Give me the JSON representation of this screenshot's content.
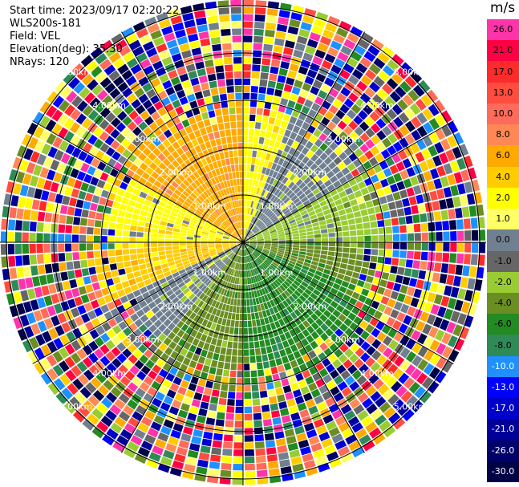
{
  "info": {
    "start_time": "Start time: 2023/09/17 02:20:22",
    "station": "WLS200s-181",
    "field": "Field: VEL",
    "elevation": "Elevation(deg): 35.30",
    "nrays": "NRays: 120"
  },
  "colorbar": {
    "unit": "m/s",
    "levels": [
      {
        "label": "26.0",
        "color": "#ff33aa"
      },
      {
        "label": "21.0",
        "color": "#ff0044"
      },
      {
        "label": "17.0",
        "color": "#ff2a2a"
      },
      {
        "label": "13.0",
        "color": "#ff4d40"
      },
      {
        "label": "10.0",
        "color": "#ff6b5a"
      },
      {
        "label": "8.0",
        "color": "#ff8855"
      },
      {
        "label": "6.0",
        "color": "#ffaa00"
      },
      {
        "label": "4.0",
        "color": "#ffcc00"
      },
      {
        "label": "2.0",
        "color": "#ffff00"
      },
      {
        "label": "1.0",
        "color": "#ffff66"
      },
      {
        "label": "0.0",
        "color": "#708090"
      },
      {
        "label": "-1.0",
        "color": "#666666"
      },
      {
        "label": "-2.0",
        "color": "#99cc33"
      },
      {
        "label": "-4.0",
        "color": "#6b8e23"
      },
      {
        "label": "-6.0",
        "color": "#228b22"
      },
      {
        "label": "-8.0",
        "color": "#2e8b57"
      },
      {
        "label": "-10.0",
        "color": "#1e90ff"
      },
      {
        "label": "-13.0",
        "color": "#0000ff"
      },
      {
        "label": "-17.0",
        "color": "#0000cc"
      },
      {
        "label": "-21.0",
        "color": "#000099"
      },
      {
        "label": "-26.0",
        "color": "#00006b"
      },
      {
        "label": "-30.0",
        "color": "#000044"
      }
    ]
  },
  "chart_data": {
    "type": "heatmap",
    "projection": "ppi",
    "field": "VEL",
    "units": "m/s",
    "nrays": 120,
    "range_rings_km": [
      1.0,
      2.0,
      3.0,
      4.0,
      5.0
    ],
    "ring_labels": [
      "1.00km",
      "2.00km",
      "3.00km",
      "4.00km",
      "5.00km"
    ],
    "max_range_km": 5.0,
    "sectors": [
      {
        "az_from": 0,
        "az_to": 20,
        "velocity": 2.0
      },
      {
        "az_from": 20,
        "az_to": 60,
        "velocity": 0.0
      },
      {
        "az_from": 60,
        "az_to": 90,
        "velocity": -2.0
      },
      {
        "az_from": 90,
        "az_to": 110,
        "velocity": -4.0
      },
      {
        "az_from": 110,
        "az_to": 180,
        "velocity": -6.0
      },
      {
        "az_from": 180,
        "az_to": 220,
        "velocity": -4.0
      },
      {
        "az_from": 220,
        "az_to": 245,
        "velocity": 0.0
      },
      {
        "az_from": 245,
        "az_to": 270,
        "velocity": 4.0
      },
      {
        "az_from": 270,
        "az_to": 300,
        "velocity": 2.0
      },
      {
        "az_from": 300,
        "az_to": 360,
        "velocity": 6.0
      }
    ],
    "clean_range_km": 3.0
  }
}
